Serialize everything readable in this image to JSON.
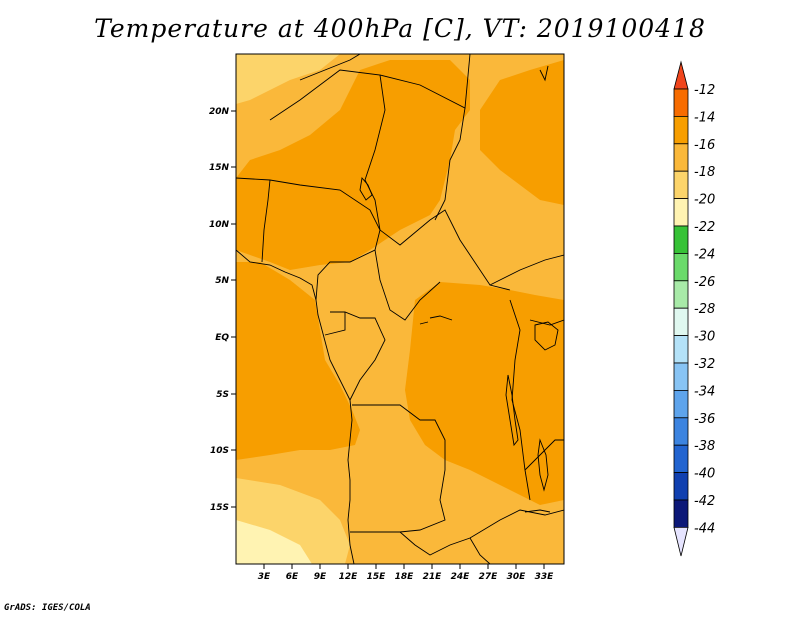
{
  "title": "Temperature at 400hPa [C], VT: 2019100418",
  "footer": "GrADS: IGES/COLA",
  "map": {
    "lat_labels": [
      "20N",
      "15N",
      "10N",
      "5N",
      "EQ",
      "5S",
      "10S",
      "15S"
    ],
    "lon_labels": [
      "3E",
      "6E",
      "9E",
      "12E",
      "15E",
      "18E",
      "21E",
      "24E",
      "27E",
      "30E",
      "33E"
    ]
  },
  "colorbar": {
    "labels": [
      "-12",
      "-14",
      "-16",
      "-18",
      "-20",
      "-22",
      "-24",
      "-26",
      "-28",
      "-30",
      "-32",
      "-34",
      "-36",
      "-38",
      "-40",
      "-42",
      "-44"
    ],
    "colors": {
      "above_-12": "#f0451c",
      "-14_to_-12": "#f76c00",
      "-16_to_-14": "#f79e00",
      "-18_to_-16": "#fab83a",
      "-20_to_-18": "#fcd46a",
      "-22_to_-20": "#fff3b2",
      "-24_to_-22": "#36c236",
      "-26_to_-24": "#6ada6a",
      "-28_to_-26": "#a8eaa8",
      "-30_to_-28": "#e0f8f0",
      "-32_to_-30": "#b4e2f8",
      "-34_to_-32": "#88c4f4",
      "-36_to_-34": "#5ea4ec",
      "-38_to_-36": "#3c84e0",
      "-40_to_-38": "#2264d0",
      "-42_to_-40": "#1040b0",
      "-44_to_-42": "#0c1878",
      "below_-44": "#e6e4ff"
    }
  }
}
